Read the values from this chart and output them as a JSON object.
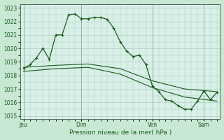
{
  "background_color": "#c8e8d4",
  "plot_bg_color": "#d8f0e8",
  "grid_color": "#b0ccc0",
  "line_color": "#1a5c1a",
  "tick_label_color": "#1a5c1a",
  "xlabel": "Pression niveau de la mer( hPa )",
  "ylim": [
    1015,
    1023
  ],
  "ytick_min": 1015,
  "ytick_max": 1023,
  "ytick_step": 1,
  "x_day_labels": [
    "Jeu",
    "Dim",
    "Ven",
    "Sam"
  ],
  "line1_x": [
    0,
    1,
    2,
    3,
    4,
    5,
    6,
    7,
    8,
    9,
    10,
    11,
    12,
    13,
    14,
    15,
    16,
    17,
    18,
    19,
    20,
    21,
    22,
    23,
    24,
    25,
    26,
    27,
    28,
    29,
    30
  ],
  "line1_y": [
    1018.5,
    1018.8,
    1019.3,
    1020.0,
    1019.2,
    1021.0,
    1021.0,
    1022.5,
    1022.55,
    1022.2,
    1022.2,
    1022.3,
    1022.3,
    1022.15,
    1021.5,
    1020.5,
    1019.8,
    1019.4,
    1019.5,
    1018.8,
    1017.2,
    1016.8,
    1016.2,
    1016.1,
    1015.75,
    1015.5,
    1015.5,
    1016.1,
    1016.85,
    1016.2,
    1016.75
  ],
  "line1_markers_x": [
    0,
    1,
    2,
    3,
    4,
    5,
    6,
    7,
    8,
    9,
    10,
    11,
    12,
    13,
    14,
    15,
    16,
    17,
    18,
    19,
    20,
    21,
    22,
    23,
    24,
    25,
    26,
    27,
    28,
    29,
    30
  ],
  "line2_x": [
    0,
    5,
    10,
    15,
    20,
    25,
    30
  ],
  "line2_y": [
    1018.6,
    1018.75,
    1018.85,
    1018.5,
    1017.6,
    1017.0,
    1016.8
  ],
  "line3_x": [
    0,
    5,
    10,
    15,
    20,
    25,
    30
  ],
  "line3_y": [
    1018.3,
    1018.5,
    1018.6,
    1018.1,
    1017.1,
    1016.4,
    1016.1
  ],
  "vline_positions": [
    0,
    9,
    20,
    28
  ],
  "vline_labels": [
    "Jeu",
    "Dim",
    "Ven",
    "Sam"
  ]
}
